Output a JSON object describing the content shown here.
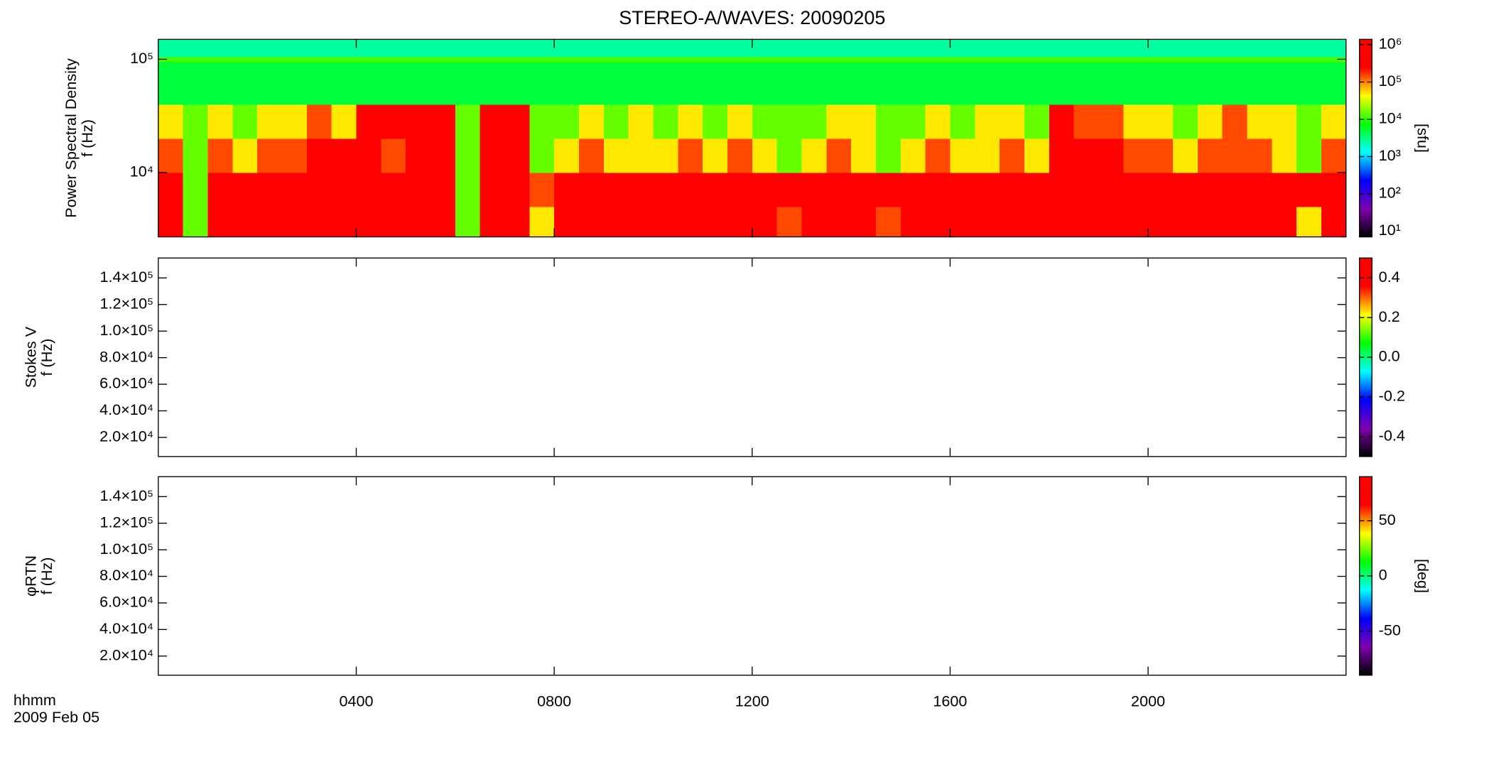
{
  "chart_data": [
    {
      "type": "heatmap",
      "title": "STEREO-A/WAVES: 20090205",
      "ylabel": [
        "Power Spectral Density",
        "f (Hz)"
      ],
      "yscale": "log",
      "ylim": [
        2700,
        150000
      ],
      "yticks": [
        {
          "value": 10000,
          "label": "10⁴"
        },
        {
          "value": 100000,
          "label": "10⁵"
        }
      ],
      "xlim": [
        0,
        24
      ],
      "x_edges": [
        0,
        0.5,
        1,
        1.5,
        2,
        2.5,
        3,
        3.5,
        4,
        4.5,
        5,
        5.5,
        6,
        6.5,
        7,
        7.5,
        8,
        8.5,
        9,
        9.5,
        10,
        10.5,
        11,
        11.5,
        12,
        12.5,
        13,
        13.5,
        14,
        14.5,
        15,
        15.5,
        16,
        16.5,
        17,
        17.5,
        18,
        18.5,
        19,
        19.5,
        20,
        20.5,
        21,
        21.5,
        22,
        22.5,
        23,
        23.5,
        24
      ],
      "y_edges": [
        2700,
        5000,
        10000,
        20000,
        40000,
        95000,
        105000,
        150000
      ],
      "z": [
        [
          1000000,
          15000,
          1000000,
          1000000,
          1000000,
          1000000,
          1000000,
          1000000,
          1000000,
          1000000,
          1000000,
          1000000,
          15000,
          1000000,
          1000000,
          50000,
          1000000,
          1000000,
          1000000,
          1000000,
          1000000,
          1000000,
          1000000,
          1000000,
          1000000,
          150000,
          1000000,
          1000000,
          1000000,
          150000,
          1000000,
          1000000,
          1000000,
          1000000,
          1000000,
          1000000,
          1000000,
          1000000,
          1000000,
          1000000,
          1000000,
          1000000,
          1000000,
          1000000,
          1000000,
          1000000,
          50000,
          1000000
        ],
        [
          1000000,
          15000,
          1000000,
          1000000,
          1000000,
          1000000,
          1000000,
          1000000,
          1000000,
          1000000,
          1000000,
          1000000,
          15000,
          1000000,
          1000000,
          150000,
          1000000,
          1000000,
          1000000,
          1000000,
          1000000,
          1000000,
          1000000,
          1000000,
          1000000,
          1000000,
          1000000,
          1000000,
          1000000,
          1000000,
          1000000,
          1000000,
          1000000,
          1000000,
          1000000,
          1000000,
          1000000,
          1000000,
          1000000,
          1000000,
          1000000,
          1000000,
          1000000,
          1000000,
          1000000,
          1000000,
          1000000,
          1000000
        ],
        [
          150000,
          15000,
          150000,
          50000,
          150000,
          150000,
          1000000,
          1000000,
          1000000,
          150000,
          1000000,
          1000000,
          15000,
          1000000,
          1000000,
          15000,
          50000,
          150000,
          50000,
          50000,
          50000,
          150000,
          50000,
          150000,
          50000,
          15000,
          50000,
          150000,
          50000,
          15000,
          50000,
          150000,
          50000,
          50000,
          150000,
          50000,
          1000000,
          1000000,
          1000000,
          150000,
          150000,
          50000,
          150000,
          150000,
          150000,
          50000,
          15000,
          150000
        ],
        [
          50000,
          15000,
          50000,
          15000,
          50000,
          50000,
          150000,
          50000,
          1000000,
          1000000,
          1000000,
          1000000,
          15000,
          1000000,
          1000000,
          15000,
          15000,
          50000,
          15000,
          50000,
          15000,
          50000,
          15000,
          50000,
          15000,
          15000,
          15000,
          50000,
          50000,
          15000,
          15000,
          50000,
          15000,
          50000,
          50000,
          15000,
          1000000,
          150000,
          150000,
          50000,
          50000,
          15000,
          50000,
          150000,
          50000,
          50000,
          15000,
          50000
        ],
        [
          5000,
          5000,
          5000,
          5000,
          5000,
          5000,
          5000,
          5000,
          5000,
          5000,
          5000,
          5000,
          5000,
          5000,
          5000,
          5000,
          5000,
          5000,
          5000,
          5000,
          5000,
          5000,
          5000,
          5000,
          5000,
          5000,
          5000,
          5000,
          5000,
          5000,
          5000,
          5000,
          5000,
          5000,
          5000,
          5000,
          5000,
          5000,
          5000,
          5000,
          5000,
          5000,
          5000,
          5000,
          5000,
          5000,
          5000,
          5000
        ],
        [
          12000,
          12000,
          12000,
          12000,
          12000,
          12000,
          12000,
          12000,
          12000,
          12000,
          12000,
          12000,
          12000,
          12000,
          12000,
          12000,
          12000,
          12000,
          12000,
          12000,
          12000,
          12000,
          12000,
          12000,
          12000,
          12000,
          12000,
          12000,
          12000,
          12000,
          12000,
          12000,
          12000,
          12000,
          12000,
          12000,
          12000,
          12000,
          12000,
          12000,
          12000,
          12000,
          12000,
          12000,
          12000,
          12000,
          12000,
          12000
        ],
        [
          2500,
          2500,
          2500,
          2500,
          2500,
          2500,
          2500,
          2500,
          2500,
          2500,
          2500,
          2500,
          2500,
          2500,
          2500,
          2500,
          2500,
          2500,
          2500,
          2500,
          2500,
          2500,
          2500,
          2500,
          2500,
          2500,
          2500,
          2500,
          2500,
          2500,
          2500,
          2500,
          2500,
          2500,
          2500,
          2500,
          2500,
          2500,
          2500,
          2500,
          2500,
          2500,
          2500,
          2500,
          2500,
          2500,
          2500,
          2500
        ]
      ],
      "colormap": [
        "#000000",
        "#7f00b0",
        "#0000ff",
        "#00ffff",
        "#00ff00",
        "#ffff00",
        "#ff0000",
        "#ff0000"
      ],
      "zscale": "log",
      "zlim": [
        7,
        1400000
      ],
      "zticks": [
        {
          "value": 10,
          "label": "10¹"
        },
        {
          "value": 100,
          "label": "10²"
        },
        {
          "value": 1000,
          "label": "10³"
        },
        {
          "value": 10000,
          "label": "10⁴"
        },
        {
          "value": 100000,
          "label": "10⁵"
        },
        {
          "value": 1000000,
          "label": "10⁶"
        }
      ],
      "zlabel": "[sfu]"
    },
    {
      "type": "heatmap",
      "ylabel": [
        "Stokes V",
        "f (Hz)"
      ],
      "ylim": [
        5600,
        155000
      ],
      "yticks": [
        {
          "value": 20000,
          "label": "2.0×10⁴"
        },
        {
          "value": 40000,
          "label": "4.0×10⁴"
        },
        {
          "value": 60000,
          "label": "6.0×10⁴"
        },
        {
          "value": 80000,
          "label": "8.0×10⁴"
        },
        {
          "value": 100000,
          "label": "1.0×10⁵"
        },
        {
          "value": 120000,
          "label": "1.2×10⁵"
        },
        {
          "value": 140000,
          "label": "1.4×10⁵"
        }
      ],
      "xlim": [
        0,
        24
      ],
      "colormap": [
        "#000000",
        "#7f00b0",
        "#0000ff",
        "#00ffff",
        "#00ff00",
        "#ffff00",
        "#ff0000",
        "#ff0000"
      ],
      "zlim": [
        -0.5,
        0.5
      ],
      "zticks": [
        -0.4,
        -0.2,
        {
          "value": 0,
          "label": "0.0"
        },
        0.2,
        0.4
      ]
    },
    {
      "type": "heatmap",
      "ylabel": [
        "φRTN",
        "f (Hz)"
      ],
      "ylim": [
        5600,
        155000
      ],
      "yticks": [
        {
          "value": 20000,
          "label": "2.0×10⁴"
        },
        {
          "value": 40000,
          "label": "4.0×10⁴"
        },
        {
          "value": 60000,
          "label": "6.0×10⁴"
        },
        {
          "value": 80000,
          "label": "8.0×10⁴"
        },
        {
          "value": 100000,
          "label": "1.0×10⁵"
        },
        {
          "value": 120000,
          "label": "1.2×10⁵"
        },
        {
          "value": 140000,
          "label": "1.4×10⁵"
        }
      ],
      "xlim": [
        0,
        24
      ],
      "xticks": [
        {
          "value": 4,
          "label": "0400"
        },
        {
          "value": 8,
          "label": "0800"
        },
        {
          "value": 12,
          "label": "1200"
        },
        {
          "value": 16,
          "label": "1600"
        },
        {
          "value": 20,
          "label": "2000"
        }
      ],
      "xlabel": "hhmm",
      "date": "2009 Feb 05",
      "colormap": [
        "#000000",
        "#7f00b0",
        "#0000ff",
        "#00ffff",
        "#00ff00",
        "#ffff00",
        "#ff0000",
        "#ff0000"
      ],
      "zlim": [
        -90,
        90
      ],
      "zticks": [
        -50,
        0,
        50
      ],
      "zlabel": "[deg]"
    }
  ]
}
